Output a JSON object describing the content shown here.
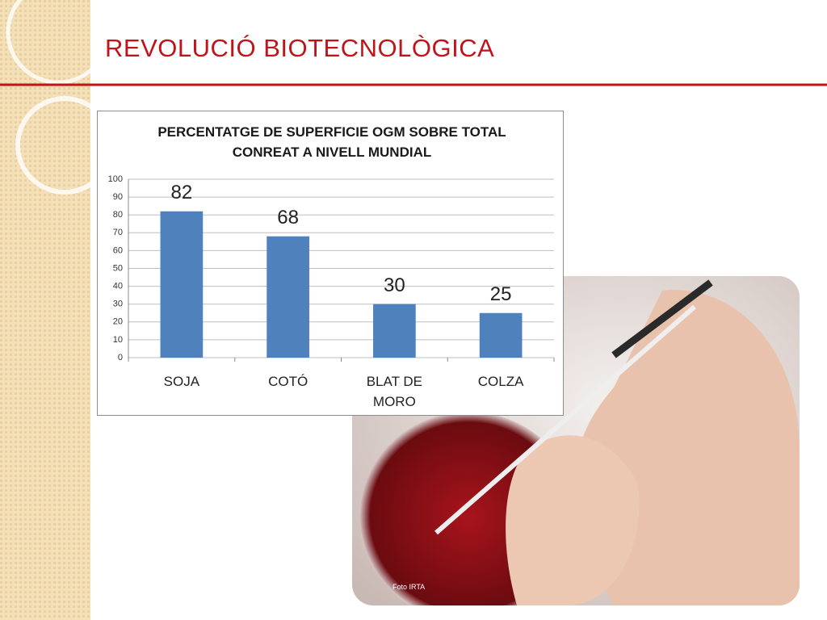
{
  "slide_title": "REVOLUCIÓ BIOTECNOLÒGICA",
  "photo_credit": "Foto IRTA",
  "chart_data": {
    "type": "bar",
    "title": "PERCENTATGE DE SUPERFICIE OGM SOBRE TOTAL CONREAT A NIVELL MUNDIAL",
    "categories": [
      "SOJA",
      "COTÓ",
      "BLAT DE MORO",
      "COLZA"
    ],
    "values": [
      82,
      68,
      30,
      25
    ],
    "color": "#4f81bd",
    "ylim": [
      0,
      100
    ],
    "yticks": [
      0,
      10,
      20,
      30,
      40,
      50,
      60,
      70,
      80,
      90,
      100
    ],
    "grid": true
  }
}
